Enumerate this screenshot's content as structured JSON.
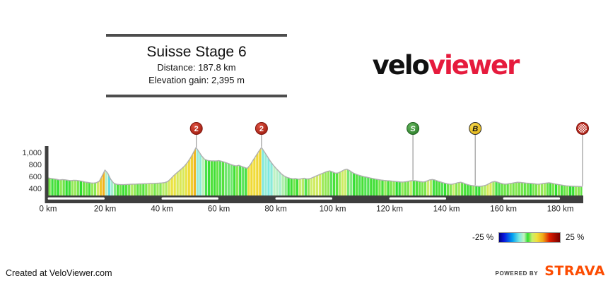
{
  "title_block": {
    "title": "Suisse Stage 6",
    "distance": "Distance: 187.8 km",
    "elevation_gain": "Elevation gain: 2,395 m"
  },
  "logo": {
    "part1": "velo",
    "part2": "viewer",
    "part2_color": "#e61b3d"
  },
  "legend": {
    "min_label": "-25 %",
    "max_label": "25 %"
  },
  "footer": {
    "created_at": "Created at VeloViewer.com",
    "powered_by": "POWERED BY",
    "strava": "STRAVA",
    "strava_color": "#fc4c02"
  },
  "chart_data": {
    "type": "area",
    "title": "Suisse Stage 6",
    "x_unit": "km",
    "total_km": 187.8,
    "x_tick_km": [
      0,
      20,
      40,
      60,
      80,
      100,
      120,
      140,
      160,
      180
    ],
    "x_tick_labels": [
      "0 km",
      "20 km",
      "40 km",
      "60 km",
      "80 km",
      "100 km",
      "120 km",
      "140 km",
      "160 km",
      "180 km"
    ],
    "y_tick_values": [
      400,
      600,
      800,
      1000
    ],
    "y_tick_labels": [
      "400",
      "600",
      "800",
      "1,000"
    ],
    "ylim": [
      290,
      1115
    ],
    "km_step": 1,
    "elevations": [
      585,
      575,
      568,
      560,
      548,
      556,
      552,
      545,
      538,
      545,
      542,
      535,
      528,
      515,
      508,
      500,
      498,
      505,
      530,
      620,
      715,
      660,
      560,
      500,
      478,
      474,
      472,
      473,
      475,
      478,
      480,
      481,
      483,
      485,
      487,
      488,
      490,
      492,
      494,
      497,
      500,
      506,
      522,
      565,
      615,
      660,
      700,
      740,
      785,
      845,
      915,
      1000,
      1090,
      1020,
      948,
      895,
      875,
      870,
      868,
      866,
      872,
      860,
      846,
      830,
      812,
      795,
      782,
      794,
      778,
      758,
      742,
      800,
      875,
      950,
      1025,
      1092,
      1020,
      945,
      870,
      805,
      750,
      700,
      650,
      615,
      592,
      578,
      568,
      573,
      562,
      570,
      578,
      565,
      572,
      590,
      612,
      632,
      652,
      672,
      692,
      700,
      682,
      662,
      668,
      690,
      718,
      730,
      705,
      672,
      650,
      632,
      618,
      605,
      595,
      585,
      575,
      565,
      556,
      548,
      542,
      538,
      535,
      530,
      525,
      520,
      515,
      517,
      522,
      532,
      540,
      536,
      530,
      520,
      515,
      530,
      550,
      558,
      548,
      530,
      515,
      500,
      488,
      480,
      478,
      490,
      505,
      512,
      498,
      478,
      465,
      455,
      450,
      446,
      444,
      452,
      465,
      490,
      515,
      525,
      512,
      495,
      482,
      480,
      488,
      495,
      505,
      512,
      508,
      502,
      498,
      494,
      490,
      486,
      478,
      482,
      490,
      498,
      503,
      495,
      485,
      475,
      468,
      460,
      452,
      448,
      446,
      444,
      442,
      440
    ],
    "final_elevation": 438,
    "markers": [
      {
        "km": 52.1,
        "type": "climb-cat-2",
        "label": "2",
        "fill_in": "#dd5040",
        "fill_out": "#9c1a0c",
        "stroke": "#7d130c",
        "text_color": "#ffffff",
        "italic": false,
        "checkered": false
      },
      {
        "km": 75.0,
        "type": "climb-cat-2",
        "label": "2",
        "fill_in": "#dd5040",
        "fill_out": "#9c1a0c",
        "stroke": "#7d130c",
        "text_color": "#ffffff",
        "italic": false,
        "checkered": false
      },
      {
        "km": 128.2,
        "type": "sprint",
        "label": "S",
        "fill_in": "#63b45c",
        "fill_out": "#2a7c28",
        "stroke": "#1f601f",
        "text_color": "#ffffff",
        "italic": true,
        "checkered": false
      },
      {
        "km": 150.1,
        "type": "bonus-sprint",
        "label": "B",
        "fill_in": "#f6d84a",
        "fill_out": "#e2b214",
        "stroke": "#2a2a2a",
        "text_color": "#111111",
        "italic": true,
        "checkered": false
      },
      {
        "km": 187.8,
        "type": "finish",
        "label": "",
        "fill_in": "#c8352a",
        "fill_out": "#a51d12",
        "stroke": "#7d130c",
        "text_color": "#ffffff",
        "italic": false,
        "checkered": true
      }
    ],
    "scale_bar_white_segments_km": [
      [
        0,
        20
      ],
      [
        40,
        60
      ],
      [
        80,
        100
      ],
      [
        120,
        140
      ],
      [
        160,
        180
      ]
    ],
    "gradient_scale_pct": [
      -25,
      25
    ],
    "color_stops": [
      {
        "pos": 0,
        "color": "#00007f"
      },
      {
        "pos": 8,
        "color": "#0a14dc"
      },
      {
        "pos": 22,
        "color": "#00a0f0"
      },
      {
        "pos": 33,
        "color": "#7ae8e0"
      },
      {
        "pos": 41,
        "color": "#c4f2c0"
      },
      {
        "pos": 47,
        "color": "#2edd2e"
      },
      {
        "pos": 54,
        "color": "#c8ee6e"
      },
      {
        "pos": 62,
        "color": "#f0e03c"
      },
      {
        "pos": 72,
        "color": "#f0a818"
      },
      {
        "pos": 83,
        "color": "#dd1c00"
      },
      {
        "pos": 100,
        "color": "#780000"
      }
    ],
    "axis_color": "#3f3f3f",
    "outline_color": "#b0b0b0"
  }
}
